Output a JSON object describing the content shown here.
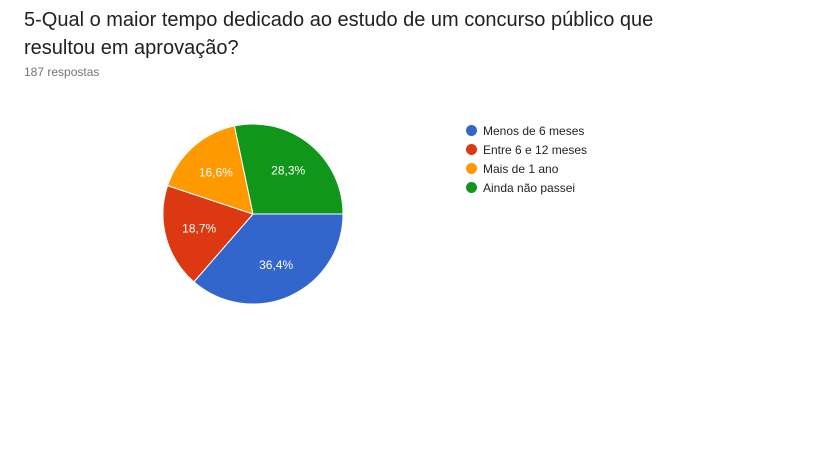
{
  "question": {
    "title": "5-Qual o maior tempo dedicado ao estudo de um concurso público que resultou em aprovação?",
    "responses": "187 respostas"
  },
  "chart_data": {
    "type": "pie",
    "categories": [
      "Menos de 6 meses",
      "Entre 6 e 12 meses",
      "Mais de 1 ano",
      "Ainda não passei"
    ],
    "values": [
      36.4,
      18.7,
      16.6,
      28.3
    ],
    "data_labels": [
      "36,4%",
      "18,7%",
      "16,6%",
      "28,3%"
    ],
    "colors": [
      "#3366cc",
      "#dc3912",
      "#ff9900",
      "#109618"
    ],
    "legend_position": "right"
  }
}
